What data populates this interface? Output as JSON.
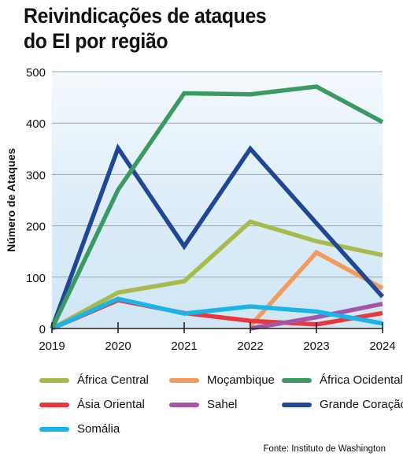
{
  "title_lines": [
    "Reivindicações de ataques",
    "do EI por região"
  ],
  "source": "Fonte: Instituto de Washington",
  "chart_data": {
    "type": "line",
    "title": "Reivindicações de ataques do EI por região",
    "xlabel": "",
    "ylabel": "Número de Ataques",
    "x": [
      "2019",
      "2020",
      "2021",
      "2022",
      "2023",
      "2024"
    ],
    "ylim": [
      0,
      500
    ],
    "yticks": [
      "0",
      "100",
      "200",
      "300",
      "400",
      "500"
    ],
    "grid": true,
    "legend_position": "bottom",
    "series": [
      {
        "name": "África Central",
        "color": "#a8bb4a",
        "values": [
          0,
          70,
          92,
          208,
          170,
          143
        ]
      },
      {
        "name": "Moçambique",
        "color": "#f39a5c",
        "values": [
          null,
          null,
          null,
          5,
          148,
          78
        ]
      },
      {
        "name": "África Ocidental",
        "color": "#3a9a62",
        "values": [
          0,
          270,
          458,
          456,
          471,
          402
        ]
      },
      {
        "name": "Ásia Oriental",
        "color": "#e8383d",
        "values": [
          0,
          55,
          30,
          15,
          8,
          30
        ]
      },
      {
        "name": "Sahel",
        "color": "#a555a3",
        "values": [
          null,
          null,
          null,
          0,
          22,
          48
        ]
      },
      {
        "name": "Grande Coração",
        "color": "#1f4796",
        "values": [
          0,
          351,
          160,
          350,
          205,
          62
        ]
      },
      {
        "name": "Somália",
        "color": "#1ab4e8",
        "values": [
          0,
          58,
          29,
          43,
          33,
          10
        ]
      }
    ]
  }
}
